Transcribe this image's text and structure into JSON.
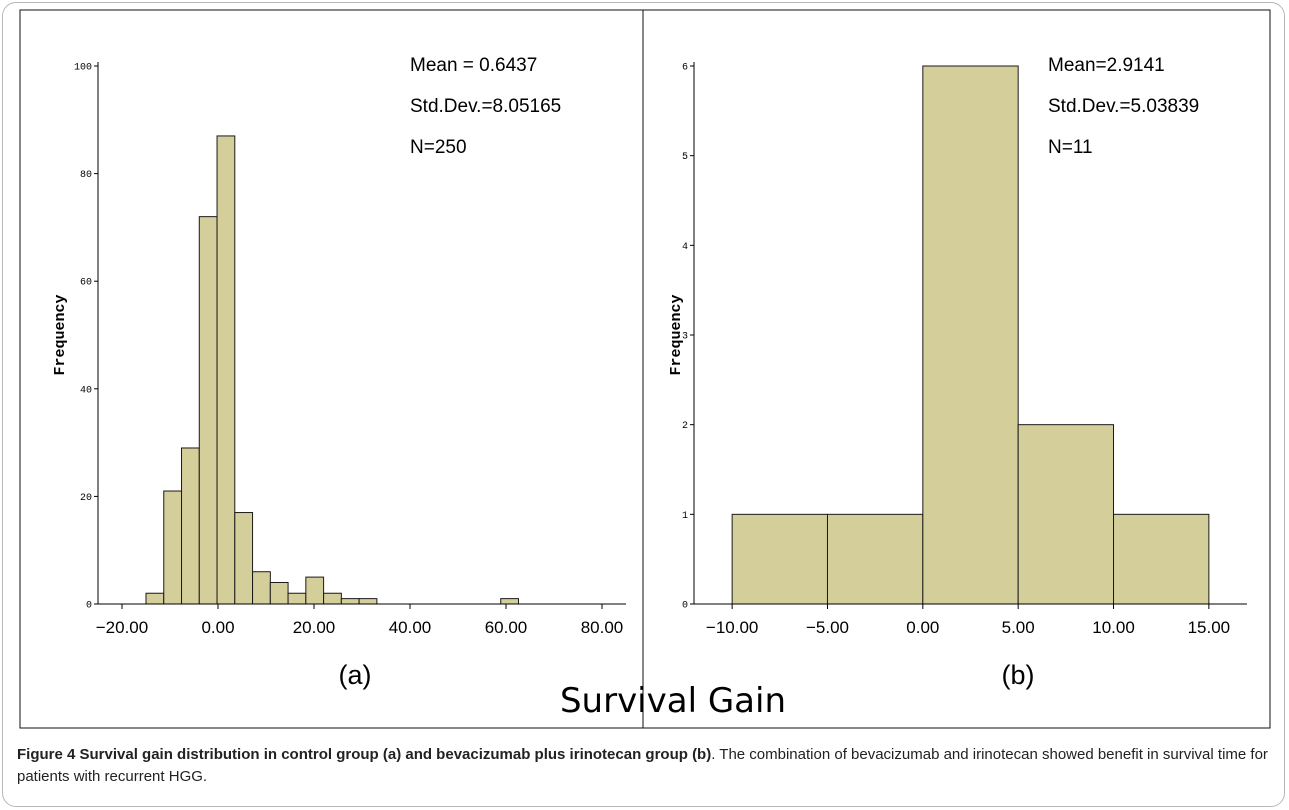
{
  "shared_xlabel": "Survival Gain",
  "caption": {
    "bold": "Figure 4 Survival gain distribution in control group (a) and bevacizumab plus irinotecan group (b)",
    "rest": ". The combination of bevacizumab and irinotecan showed benefit in survival time for patients with recurrent HGG."
  },
  "colors": {
    "bar_fill": "#d4ce9a",
    "bar_stroke": "#1a1a1a",
    "axis": "#000000"
  },
  "chart_data": [
    {
      "type": "bar",
      "panel_label": "(a)",
      "ylabel": "Frequency",
      "xlim": [
        -25,
        85
      ],
      "ylim": [
        0,
        100
      ],
      "yticks": [
        0,
        20,
        40,
        60,
        80,
        100
      ],
      "xticks": [
        -20,
        0,
        20,
        40,
        60,
        80
      ],
      "xtick_labels": [
        "-20.00",
        "0.00",
        "20.00",
        "40.00",
        "60.00",
        "80.00"
      ],
      "bin_width": 3.7,
      "bins": [
        {
          "start": -15.0,
          "count": 2
        },
        {
          "start": -11.3,
          "count": 21
        },
        {
          "start": -7.6,
          "count": 29
        },
        {
          "start": -3.9,
          "count": 72
        },
        {
          "start": -0.2,
          "count": 87
        },
        {
          "start": 3.5,
          "count": 17
        },
        {
          "start": 7.2,
          "count": 6
        },
        {
          "start": 10.9,
          "count": 4
        },
        {
          "start": 14.6,
          "count": 2
        },
        {
          "start": 18.3,
          "count": 5
        },
        {
          "start": 22.0,
          "count": 2
        },
        {
          "start": 25.7,
          "count": 1
        },
        {
          "start": 29.4,
          "count": 1
        },
        {
          "start": 58.9,
          "count": 1
        }
      ],
      "stats": [
        "Mean = 0.6437",
        "Std.Dev.=8.05165",
        "N=250"
      ],
      "grid": false
    },
    {
      "type": "bar",
      "panel_label": "(b)",
      "ylabel": "Frequency",
      "xlim": [
        -12,
        17
      ],
      "ylim": [
        0,
        6
      ],
      "yticks": [
        0,
        1,
        2,
        3,
        4,
        5,
        6
      ],
      "xticks": [
        -10,
        -5,
        0,
        5,
        10,
        15
      ],
      "xtick_labels": [
        "-10.00",
        "-5.00",
        "0.00",
        "5.00",
        "10.00",
        "15.00"
      ],
      "bin_width": 5,
      "bins": [
        {
          "start": -10,
          "count": 1
        },
        {
          "start": -5,
          "count": 1
        },
        {
          "start": 0,
          "count": 6
        },
        {
          "start": 5,
          "count": 2
        },
        {
          "start": 10,
          "count": 1
        }
      ],
      "stats": [
        "Mean=2.9141",
        "Std.Dev.=5.03839",
        "N=11"
      ],
      "grid": false
    }
  ]
}
